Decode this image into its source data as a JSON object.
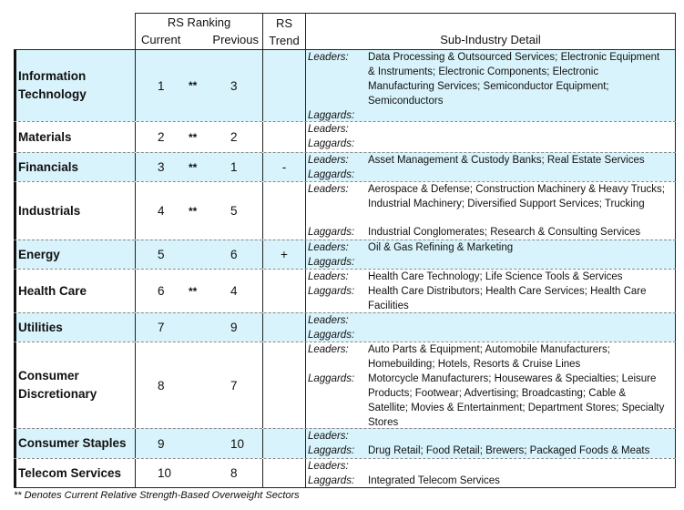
{
  "header": {
    "rs_ranking": "RS Ranking",
    "current": "Current",
    "previous": "Previous",
    "rs_trend_1": "RS",
    "rs_trend_2": "Trend",
    "detail": "Sub-Industry Detail"
  },
  "labels": {
    "leaders": "Leaders:",
    "laggards": "Laggards:"
  },
  "shade_color": "#d8f3fb",
  "rows": [
    {
      "sector": "Information Technology",
      "current": "1",
      "stars": "**",
      "previous": "3",
      "trend": "",
      "shaded": true,
      "spread": true,
      "h": 79,
      "leaders": "Data Processing & Outsourced Services; Electronic Equipment & Instruments; Electronic Components; Electronic Manufacturing Services; Semiconductor Equipment; Semiconductors",
      "laggards": ""
    },
    {
      "sector": "Materials",
      "current": "2",
      "stars": "**",
      "previous": "2",
      "trend": "",
      "shaded": false,
      "h": 34,
      "leaders": "",
      "laggards": ""
    },
    {
      "sector": "Financials",
      "current": "3",
      "stars": "**",
      "previous": "1",
      "trend": "-",
      "shaded": true,
      "h": 32,
      "leaders": "Asset Management & Custody Banks; Real Estate Services",
      "laggards": ""
    },
    {
      "sector": "Industrials",
      "current": "4",
      "stars": "**",
      "previous": "5",
      "trend": "",
      "shaded": false,
      "spread": true,
      "h": 64,
      "leaders": "Aerospace & Defense; Construction Machinery & Heavy Trucks; Industrial Machinery; Diversified Support Services; Trucking",
      "laggards": "Industrial Conglomerates; Research & Consulting Services"
    },
    {
      "sector": "Energy",
      "current": "5",
      "stars": "",
      "previous": "6",
      "trend": "+",
      "shaded": true,
      "h": 32,
      "leaders": "Oil & Gas Refining & Marketing",
      "laggards": ""
    },
    {
      "sector": "Health Care",
      "current": "6",
      "stars": "**",
      "previous": "4",
      "trend": "",
      "shaded": false,
      "h": 48,
      "leaders": "Health Care Technology; Life Science Tools & Services",
      "laggards": "Health Care Distributors; Health Care Services; Health Care Facilities"
    },
    {
      "sector": "Utilities",
      "current": "7",
      "stars": "",
      "previous": "9",
      "trend": "",
      "shaded": true,
      "h": 32,
      "leaders": "",
      "laggards": ""
    },
    {
      "sector": "Consumer Discretionary",
      "current": "8",
      "stars": "",
      "previous": "7",
      "trend": "",
      "shaded": false,
      "h": 95,
      "leaders": "Auto Parts & Equipment; Automobile Manufacturers; Homebuilding; Hotels, Resorts & Cruise Lines",
      "laggards": "Motorcycle Manufacturers; Housewares & Specialties; Leisure Products; Footwear; Advertising; Broadcasting; Cable & Satellite; Movies & Entertainment; Department Stores; Specialty Stores"
    },
    {
      "sector": "Consumer Staples",
      "current": "9",
      "stars": "",
      "previous": "10",
      "trend": "",
      "shaded": true,
      "h": 33,
      "leaders": "",
      "laggards": "Drug Retail; Food Retail; Brewers; Packaged Foods & Meats"
    },
    {
      "sector": "Telecom Services",
      "current": "10",
      "stars": "",
      "previous": "8",
      "trend": "",
      "shaded": false,
      "h": 33,
      "leaders": "",
      "laggards": "Integrated Telecom Services"
    }
  ],
  "footnote": "** Denotes Current Relative Strength-Based Overweight Sectors"
}
